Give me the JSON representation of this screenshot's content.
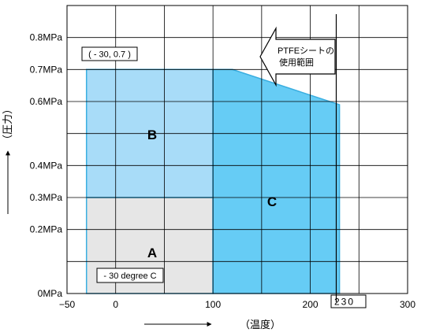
{
  "chart_data": {
    "type": "area",
    "title": "",
    "xlabel": "（温度）",
    "ylabel": "（圧力）",
    "xlim": [
      -50,
      300
    ],
    "ylim": [
      0,
      0.9
    ],
    "grid": true,
    "x_ticks": [
      {
        "value": -50,
        "label": "−50"
      },
      {
        "value": 0,
        "label": "0"
      },
      {
        "value": 100,
        "label": "100"
      },
      {
        "value": 200,
        "label": "200"
      },
      {
        "value": 300,
        "label": "300"
      }
    ],
    "y_ticks": [
      {
        "value": 0,
        "label": "0MPa"
      },
      {
        "value": 0.2,
        "label": "0.2MPa"
      },
      {
        "value": 0.3,
        "label": "0.3MPa"
      },
      {
        "value": 0.4,
        "label": "0.4MPa"
      },
      {
        "value": 0.6,
        "label": "0.6MPa"
      },
      {
        "value": 0.7,
        "label": "0.7MPa"
      },
      {
        "value": 0.8,
        "label": "0.8MPa"
      }
    ],
    "regions": [
      {
        "label": "A",
        "color": "#e6e6e6",
        "polygon": [
          [
            -30,
            0
          ],
          [
            100,
            0
          ],
          [
            100,
            0.3
          ],
          [
            -30,
            0.3
          ]
        ]
      },
      {
        "label": "B",
        "color": "#a8dcf8",
        "polygon": [
          [
            -30,
            0.3
          ],
          [
            100,
            0.3
          ],
          [
            100,
            0.7
          ],
          [
            -30,
            0.7
          ]
        ]
      },
      {
        "label": "C",
        "color": "#66ccf5",
        "polygon": [
          [
            100,
            0
          ],
          [
            230,
            0
          ],
          [
            230,
            0.59
          ],
          [
            120,
            0.7
          ],
          [
            100,
            0.7
          ]
        ]
      }
    ],
    "annotations": {
      "corner_point": "( - 30, 0.7 )",
      "min_temp": "- 30 degree C",
      "max_temp": "230",
      "ptfe_line1": "PTFEシートの",
      "ptfe_line2": "使用範囲"
    },
    "colors": {
      "grid": "#000000",
      "region_border": "#3aaee0"
    }
  }
}
